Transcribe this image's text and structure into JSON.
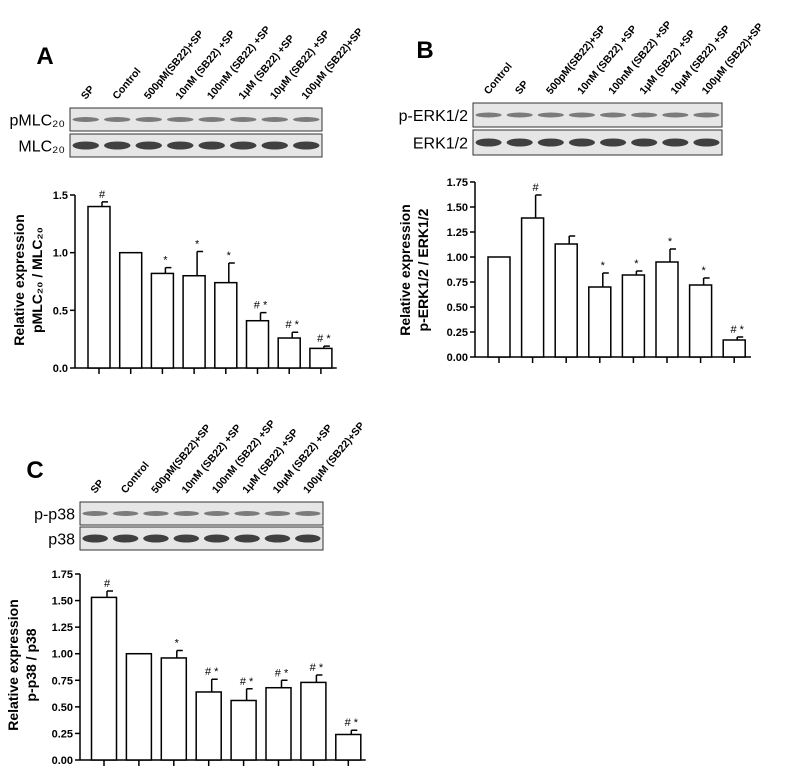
{
  "chart_data": [
    {
      "type": "bar",
      "label": "A",
      "categories": [
        "SP",
        "Control",
        "500pM(SB22)+SP",
        "10nM (SB22) +SP",
        "100nM (SB22) +SP",
        "1μM (SB22) +SP",
        "10μM (SB22) +SP",
        "100μM (SB22)+SP"
      ],
      "blot_labels": [
        "pMLC₂₀",
        "MLC₂₀"
      ],
      "ylabel": [
        "Relative expression",
        "pMLC₂₀ / MLC₂₀"
      ],
      "values": [
        1.4,
        1.0,
        0.82,
        0.8,
        0.74,
        0.41,
        0.26,
        0.17
      ],
      "errors": [
        0.04,
        null,
        0.05,
        0.21,
        0.17,
        0.07,
        0.05,
        0.02
      ],
      "annotations": [
        "#",
        null,
        "*",
        "*",
        "*",
        "# *",
        "# *",
        "# *"
      ],
      "color": "#ffffff",
      "ylim": [
        0,
        1.5
      ],
      "yticks": [
        {
          "value": 0,
          "label": "0.0"
        },
        0.5,
        {
          "value": 1,
          "label": "1.0"
        },
        1.5
      ]
    },
    {
      "type": "bar",
      "label": "B",
      "categories": [
        "Control",
        "SP",
        "500pM(SB22)+SP",
        "10nM (SB22) +SP",
        "100nM (SB22) +SP",
        "1μM (SB22) +SP",
        "10μM (SB22) +SP",
        "100μM (SB22)+SP"
      ],
      "blot_labels": [
        "p-ERK1/2",
        "ERK1/2"
      ],
      "ylabel": [
        "Relative expression",
        "p-ERK1/2 / ERK1/2"
      ],
      "values": [
        1.0,
        1.39,
        1.13,
        0.7,
        0.82,
        0.95,
        0.72,
        0.17
      ],
      "errors": [
        null,
        0.23,
        0.08,
        0.14,
        0.04,
        0.13,
        0.07,
        0.03
      ],
      "annotations": [
        null,
        "#",
        null,
        "*",
        "*",
        "*",
        "*",
        "# *"
      ],
      "color": "#ffffff",
      "ylim": [
        0,
        1.75
      ],
      "yticks": [
        {
          "value": 0,
          "label": "0.00"
        },
        0.25,
        {
          "value": 0.5,
          "label": "0.50"
        },
        0.75,
        {
          "value": 1,
          "label": "1.00"
        },
        1.25,
        {
          "value": 1.5,
          "label": "1.50"
        },
        1.75
      ]
    },
    {
      "type": "bar",
      "label": "C",
      "categories": [
        "SP",
        "Control",
        "500pM(SB22)+SP",
        "10nM (SB22) +SP",
        "100nM (SB22) +SP",
        "1μM (SB22) +SP",
        "10μM (SB22) +SP",
        "100μM (SB22)+SP"
      ],
      "blot_labels": [
        "p-p38",
        "p38"
      ],
      "ylabel": [
        "Relative expression",
        "p-p38 / p38"
      ],
      "values": [
        1.53,
        1.0,
        0.96,
        0.64,
        0.56,
        0.68,
        0.73,
        0.24
      ],
      "errors": [
        0.06,
        null,
        0.07,
        0.12,
        0.11,
        0.07,
        0.07,
        0.04
      ],
      "annotations": [
        "#",
        null,
        "*",
        "# *",
        "# *",
        "# *",
        "# *",
        "# *"
      ],
      "color": "#ffffff",
      "ylim": [
        0,
        1.75
      ],
      "yticks": [
        {
          "value": 0,
          "label": "0.00"
        },
        0.25,
        {
          "value": 0.5,
          "label": "0.50"
        },
        0.75,
        {
          "value": 1,
          "label": "1.00"
        },
        1.25,
        {
          "value": 1.5,
          "label": "1.50"
        },
        1.75
      ]
    }
  ]
}
